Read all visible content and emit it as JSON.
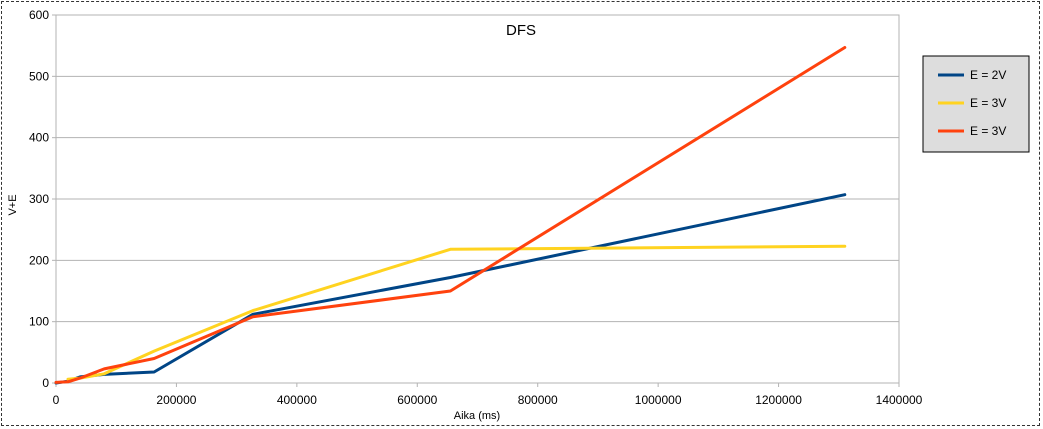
{
  "chart_data": {
    "type": "line",
    "title": "DFS",
    "xlabel": "Aika (ms)",
    "ylabel": "V+E",
    "xlim": [
      0,
      1400000
    ],
    "ylim": [
      0,
      600
    ],
    "xticks": [
      0,
      200000,
      400000,
      600000,
      800000,
      1000000,
      1200000,
      1400000
    ],
    "yticks": [
      0,
      100,
      200,
      300,
      400,
      500,
      600
    ],
    "grid": true,
    "legend_position": "right",
    "series": [
      {
        "name": "E = 2V",
        "color": "#004586",
        "x": [
          0,
          20000,
          40000,
          80000,
          163000,
          327000,
          655000,
          1310000
        ],
        "y": [
          0,
          3,
          10,
          14,
          18,
          112,
          172,
          307
        ]
      },
      {
        "name": "E = 3V",
        "color": "#ffd320",
        "x": [
          20000,
          40000,
          80000,
          163000,
          327000,
          655000,
          1310000
        ],
        "y": [
          6,
          8,
          15,
          52,
          118,
          218,
          223
        ]
      },
      {
        "name": "E = 3V",
        "color": "#ff420e",
        "x": [
          0,
          20000,
          40000,
          80000,
          163000,
          327000,
          655000,
          1310000
        ],
        "y": [
          1,
          2,
          8,
          23,
          40,
          108,
          150,
          547
        ]
      }
    ]
  }
}
